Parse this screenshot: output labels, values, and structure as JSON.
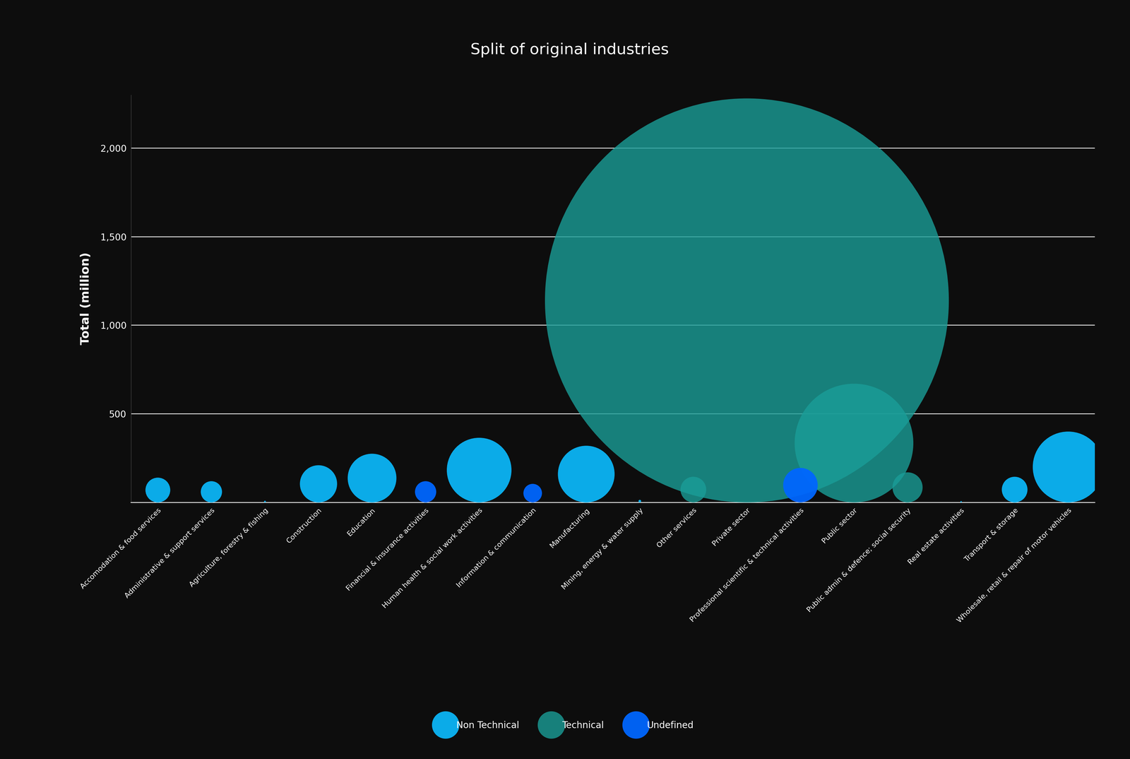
{
  "chart_data": {
    "type": "bubble",
    "title": "Split of original industries",
    "y_label": "Total (million)",
    "categories": [
      "Accomodation & food services",
      "Administrative & support services",
      "Agriculture, forestry & fishing",
      "Construction",
      "Education",
      "Financial & insurance activities",
      "Human health & social work activities",
      "Information & communication",
      "Manufacturing",
      "Mining, energy & water supply",
      "Other services",
      "Private sector",
      "Professional scientific & technical activities",
      "Public sector",
      "Public admin & defence; social security",
      "Real estate activities",
      "Transport & storage",
      "Wholesale, retail & repair of motor vehicles"
    ],
    "series": [
      {
        "name": "Non Technical",
        "color": "#0bb5f5",
        "values": [
          140,
          120,
          10,
          210,
          275,
          null,
          365,
          null,
          320,
          15,
          null,
          null,
          null,
          null,
          null,
          8,
          145,
          400
        ]
      },
      {
        "name": "Technical",
        "color": "#1a9e98",
        "values": [
          null,
          null,
          null,
          null,
          null,
          null,
          null,
          null,
          null,
          null,
          145,
          2280,
          null,
          670,
          170,
          null,
          null,
          null
        ]
      },
      {
        "name": "Undefined",
        "color": "#0066ff",
        "values": [
          null,
          null,
          null,
          null,
          null,
          120,
          null,
          105,
          null,
          null,
          null,
          null,
          195,
          null,
          null,
          null,
          null,
          null
        ]
      }
    ],
    "ylim": [
      0,
      2300
    ],
    "yticks": [
      500,
      {
        "value": 1000,
        "label": "1,000"
      },
      {
        "value": 1500,
        "label": "1,500"
      },
      {
        "value": 2000,
        "label": "2,000"
      }
    ],
    "grid": true,
    "legend": "bottom"
  }
}
